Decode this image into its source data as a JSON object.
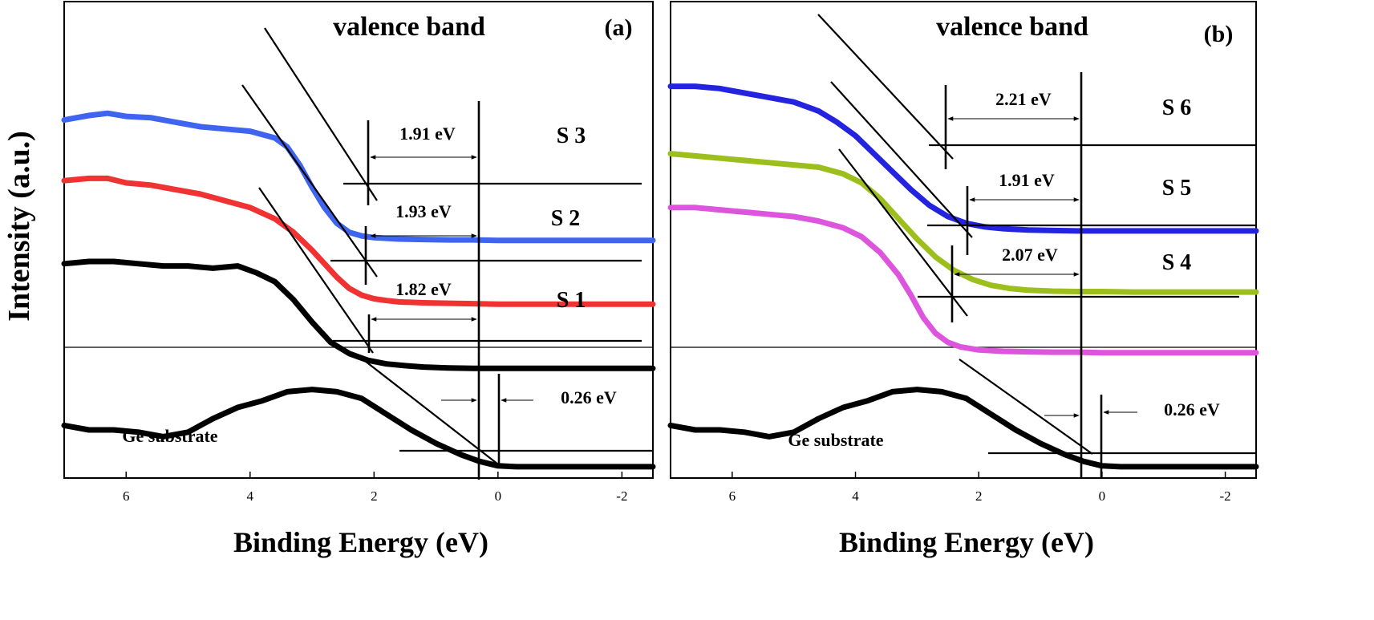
{
  "ylabel": "Intensity (a.u.)",
  "chart_data": [
    {
      "panel": "(a)",
      "type": "line",
      "title": "valence band",
      "xlabel": "Binding Energy (eV)",
      "ylabel": "Intensity (a.u.)",
      "xlim": [
        7,
        -2.5
      ],
      "x_ticks": [
        6,
        4,
        2,
        0,
        -2
      ],
      "x_tick_labels": [
        "6",
        "4",
        "2",
        "0",
        "-2"
      ],
      "x_reversed": true,
      "grid": false,
      "legend": "none",
      "series": [
        {
          "name": "S 3",
          "color": "#3f64f0",
          "x": [
            7.0,
            6.6,
            6.3,
            6.0,
            5.6,
            5.2,
            4.8,
            4.4,
            4.0,
            3.6,
            3.4,
            3.2,
            3.0,
            2.8,
            2.6,
            2.4,
            2.2,
            2.0,
            1.6,
            1.2,
            0.8,
            0.4,
            0.0,
            -0.5,
            -1.0,
            -1.5,
            -2.0,
            -2.5
          ],
          "y": [
            0.74,
            0.75,
            0.755,
            0.748,
            0.745,
            0.735,
            0.725,
            0.72,
            0.715,
            0.7,
            0.68,
            0.64,
            0.59,
            0.545,
            0.51,
            0.49,
            0.482,
            0.478,
            0.475,
            0.474,
            0.473,
            0.473,
            0.472,
            0.472,
            0.472,
            0.472,
            0.472,
            0.472
          ]
        },
        {
          "name": "S 2",
          "color": "#f03232",
          "x": [
            7.0,
            6.6,
            6.3,
            6.0,
            5.6,
            5.2,
            4.8,
            4.4,
            4.0,
            3.6,
            3.3,
            3.0,
            2.8,
            2.6,
            2.4,
            2.2,
            2.0,
            1.8,
            1.6,
            1.2,
            0.8,
            0.4,
            0.0,
            -0.5,
            -1.0,
            -1.5,
            -2.0,
            -2.5
          ],
          "y": [
            0.605,
            0.61,
            0.61,
            0.6,
            0.595,
            0.585,
            0.575,
            0.56,
            0.545,
            0.52,
            0.49,
            0.45,
            0.42,
            0.39,
            0.365,
            0.35,
            0.342,
            0.338,
            0.335,
            0.333,
            0.332,
            0.331,
            0.33,
            0.33,
            0.33,
            0.33,
            0.33,
            0.33
          ]
        },
        {
          "name": "S 1",
          "color": "#000000",
          "x": [
            7.0,
            6.6,
            6.2,
            5.8,
            5.4,
            5.0,
            4.6,
            4.2,
            3.9,
            3.6,
            3.3,
            3.0,
            2.7,
            2.4,
            2.1,
            1.8,
            1.5,
            1.2,
            0.8,
            0.4,
            0.0,
            -0.5,
            -1.0,
            -1.5,
            -2.0,
            -2.5
          ],
          "y": [
            0.42,
            0.425,
            0.425,
            0.42,
            0.415,
            0.415,
            0.41,
            0.415,
            0.4,
            0.38,
            0.34,
            0.29,
            0.245,
            0.22,
            0.205,
            0.197,
            0.193,
            0.19,
            0.188,
            0.187,
            0.187,
            0.187,
            0.187,
            0.187,
            0.187,
            0.187
          ]
        },
        {
          "name": "Ge substrate",
          "color": "#000000",
          "x": [
            7.0,
            6.6,
            6.2,
            5.8,
            5.4,
            5.0,
            4.6,
            4.2,
            3.8,
            3.4,
            3.0,
            2.6,
            2.2,
            1.8,
            1.4,
            1.0,
            0.6,
            0.3,
            0.0,
            -0.3,
            -0.8,
            -1.5,
            -2.0,
            -2.5
          ],
          "y": [
            0.06,
            0.05,
            0.05,
            0.045,
            0.035,
            0.045,
            0.075,
            0.1,
            0.115,
            0.135,
            0.14,
            0.135,
            0.12,
            0.085,
            0.05,
            0.02,
            -0.005,
            -0.02,
            -0.03,
            -0.032,
            -0.032,
            -0.032,
            -0.032,
            -0.032
          ]
        }
      ],
      "annotations": [
        "1.91 eV",
        "1.93 eV",
        "1.82 eV",
        "0.26 eV",
        "Ge substrate"
      ]
    },
    {
      "panel": "(b)",
      "type": "line",
      "title": "valence band",
      "xlabel": "Binding Energy (eV)",
      "ylabel": "Intensity (a.u.)",
      "xlim": [
        7,
        -2.5
      ],
      "x_ticks": [
        6,
        4,
        2,
        0,
        -2
      ],
      "x_tick_labels": [
        "6",
        "4",
        "2",
        "0",
        "-2"
      ],
      "x_reversed": true,
      "grid": false,
      "legend": "none",
      "series": [
        {
          "name": "S 6",
          "color": "#2424e0",
          "x": [
            7.0,
            6.6,
            6.2,
            5.8,
            5.4,
            5.0,
            4.6,
            4.3,
            4.0,
            3.7,
            3.4,
            3.1,
            2.8,
            2.5,
            2.2,
            1.9,
            1.6,
            1.2,
            0.8,
            0.4,
            0.0,
            -0.5,
            -1.0,
            -1.5,
            -2.0,
            -2.5
          ],
          "y": [
            0.815,
            0.815,
            0.81,
            0.8,
            0.79,
            0.78,
            0.76,
            0.735,
            0.705,
            0.665,
            0.625,
            0.585,
            0.55,
            0.525,
            0.51,
            0.502,
            0.498,
            0.495,
            0.494,
            0.493,
            0.493,
            0.493,
            0.493,
            0.493,
            0.493,
            0.493
          ]
        },
        {
          "name": "S 5",
          "color": "#9dbf1e",
          "x": [
            7.0,
            6.6,
            6.2,
            5.8,
            5.4,
            5.0,
            4.6,
            4.2,
            3.9,
            3.6,
            3.3,
            3.0,
            2.7,
            2.4,
            2.1,
            1.8,
            1.5,
            1.2,
            0.8,
            0.4,
            0.0,
            -0.5,
            -1.0,
            -1.5,
            -2.0,
            -2.5
          ],
          "y": [
            0.665,
            0.66,
            0.655,
            0.65,
            0.645,
            0.64,
            0.635,
            0.62,
            0.6,
            0.565,
            0.52,
            0.475,
            0.435,
            0.405,
            0.385,
            0.372,
            0.365,
            0.361,
            0.359,
            0.358,
            0.358,
            0.357,
            0.357,
            0.357,
            0.357,
            0.357
          ]
        },
        {
          "name": "S 4",
          "color": "#dd55dd",
          "x": [
            7.0,
            6.6,
            6.2,
            5.8,
            5.4,
            5.0,
            4.6,
            4.2,
            3.9,
            3.6,
            3.3,
            3.1,
            2.9,
            2.7,
            2.5,
            2.3,
            2.0,
            1.6,
            1.2,
            0.8,
            0.4,
            0.0,
            -0.5,
            -1.0,
            -1.5,
            -2.0,
            -2.5
          ],
          "y": [
            0.545,
            0.545,
            0.54,
            0.535,
            0.53,
            0.525,
            0.515,
            0.5,
            0.48,
            0.445,
            0.395,
            0.35,
            0.3,
            0.265,
            0.245,
            0.235,
            0.228,
            0.225,
            0.224,
            0.223,
            0.223,
            0.222,
            0.222,
            0.222,
            0.222,
            0.222,
            0.222
          ]
        },
        {
          "name": "Ge substrate",
          "color": "#000000",
          "x": [
            7.0,
            6.6,
            6.2,
            5.8,
            5.4,
            5.0,
            4.6,
            4.2,
            3.8,
            3.4,
            3.0,
            2.6,
            2.2,
            1.8,
            1.4,
            1.0,
            0.6,
            0.3,
            0.0,
            -0.3,
            -0.8,
            -1.5,
            -2.0,
            -2.5
          ],
          "y": [
            0.06,
            0.05,
            0.05,
            0.045,
            0.035,
            0.045,
            0.075,
            0.1,
            0.115,
            0.135,
            0.14,
            0.135,
            0.12,
            0.085,
            0.05,
            0.02,
            -0.005,
            -0.02,
            -0.03,
            -0.032,
            -0.032,
            -0.032,
            -0.032,
            -0.032
          ]
        }
      ],
      "annotations": [
        "2.21 eV",
        "1.91 eV",
        "2.07 eV",
        "0.26 eV",
        "Ge substrate"
      ]
    }
  ]
}
